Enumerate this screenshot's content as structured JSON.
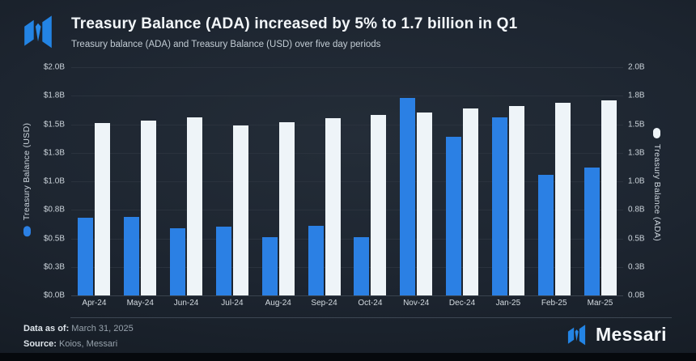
{
  "header": {
    "title": "Treasury Balance (ADA) increased by 5% to 1.7 billion in Q1",
    "subtitle": "Treasury balance (ADA) and Treasury Balance (USD) over five day periods"
  },
  "chart_data": {
    "type": "bar",
    "title": "Treasury Balance (ADA) increased by 5% to 1.7 billion in Q1",
    "subtitle": "Treasury balance (ADA) and Treasury Balance (USD) over five day periods",
    "categories": [
      "Apr-24",
      "May-24",
      "Jun-24",
      "Jul-24",
      "Aug-24",
      "Sep-24",
      "Oct-24",
      "Nov-24",
      "Dec-24",
      "Jan-25",
      "Feb-25",
      "Mar-25"
    ],
    "series": [
      {
        "name": "Treasury Balance (USD)",
        "axis": "left",
        "color": "#2B80E4",
        "values": [
          0.68,
          0.69,
          0.59,
          0.6,
          0.51,
          0.61,
          0.51,
          1.73,
          1.39,
          1.56,
          1.06,
          1.12
        ]
      },
      {
        "name": "Treasury Balance (ADA)",
        "axis": "right",
        "color": "#EEF4F8",
        "values": [
          1.51,
          1.53,
          1.56,
          1.49,
          1.52,
          1.55,
          1.58,
          1.6,
          1.64,
          1.66,
          1.69,
          1.71
        ]
      }
    ],
    "ylim": [
      0,
      2.0
    ],
    "grid": "horizontal",
    "legend_position": "axis-titles",
    "left_axis_title": "Treasury Balance (USD)",
    "right_axis_title": "Treasury Balance (ADA)",
    "yticks": [
      {
        "value": 2.0,
        "left_label": "$2.0B",
        "right_label": "2.0B"
      },
      {
        "value": 1.75,
        "left_label": "$1.8B",
        "right_label": "1.8B"
      },
      {
        "value": 1.5,
        "left_label": "$1.5B",
        "right_label": "1.5B"
      },
      {
        "value": 1.25,
        "left_label": "$1.3B",
        "right_label": "1.3B"
      },
      {
        "value": 1.0,
        "left_label": "$1.0B",
        "right_label": "1.0B"
      },
      {
        "value": 0.75,
        "left_label": "$0.8B",
        "right_label": "0.8B"
      },
      {
        "value": 0.5,
        "left_label": "$0.5B",
        "right_label": "0.5B"
      },
      {
        "value": 0.25,
        "left_label": "$0.3B",
        "right_label": "0.3B"
      },
      {
        "value": 0.0,
        "left_label": "$0.0B",
        "right_label": "0.0B"
      }
    ]
  },
  "footer": {
    "data_as_of_label": "Data as of:",
    "data_as_of_value": " March 31, 2025",
    "source_label": "Source:",
    "source_value": " Koios, Messari",
    "brand_name": "Messari"
  },
  "colors": {
    "usd_bar": "#2B80E4",
    "ada_bar": "#EEF4F8",
    "background": "#1D2530",
    "gridline": "#2A323D",
    "logo_blue": "#2384E4"
  }
}
